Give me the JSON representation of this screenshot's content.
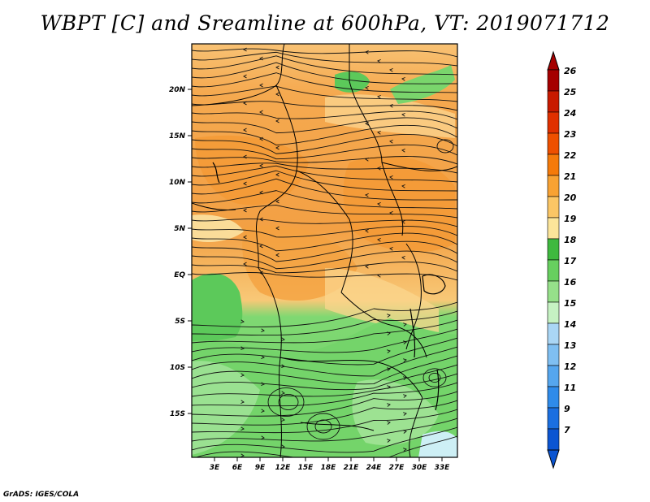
{
  "title": "WBPT [C] and Sreamline at 600hPa, VT: 2019071712",
  "credit": "GrADS: IGES/COLA",
  "map": {
    "lat_labels": [
      "20N",
      "15N",
      "10N",
      "5N",
      "EQ",
      "5S",
      "10S",
      "15S"
    ],
    "lon_labels": [
      "3E",
      "6E",
      "9E",
      "12E",
      "15E",
      "18E",
      "21E",
      "24E",
      "27E",
      "30E",
      "33E"
    ]
  },
  "colorbar": {
    "levels": [
      "26",
      "25",
      "24",
      "23",
      "22",
      "21",
      "20",
      "19",
      "18",
      "17",
      "16",
      "15",
      "14",
      "13",
      "12",
      "11",
      "9",
      "7"
    ],
    "colors": [
      "#a50000",
      "#c81a00",
      "#e03000",
      "#ee5000",
      "#f57a0a",
      "#f8a233",
      "#fbc665",
      "#fce59a",
      "#3fb93f",
      "#67cf5f",
      "#96e08a",
      "#c6f2c3",
      "#aad6f5",
      "#7fbff2",
      "#55a6ee",
      "#2f8bea",
      "#1b6fe0",
      "#0b55d2"
    ]
  },
  "colors": {
    "warm": "#f5a64a",
    "cool": "#6ed36a",
    "line": "#111111"
  }
}
